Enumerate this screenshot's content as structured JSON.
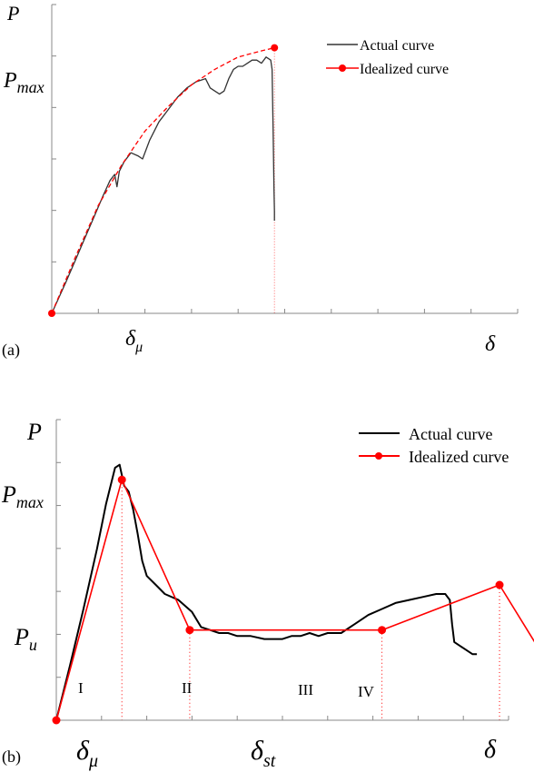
{
  "chart_data": [
    {
      "type": "line",
      "panel_label": "(a)",
      "y_axis_label": "P",
      "x_axis_label": "δ",
      "y_tick_label": {
        "base": "P",
        "sub": "max"
      },
      "x_tick_label": {
        "base": "δ",
        "sub": "μ"
      },
      "xlim": [
        0,
        10
      ],
      "ylim": [
        0,
        1.0
      ],
      "legend": {
        "placement": "top-right",
        "entries": [
          {
            "label": "Actual curve",
            "color": "#333333",
            "marker": "none"
          },
          {
            "label": "Idealized curve",
            "color": "#ff0000",
            "marker": "dot",
            "dashed": true
          }
        ]
      },
      "series": [
        {
          "name": "Actual curve",
          "color": "#333333",
          "x": [
            0.0,
            0.15,
            0.3,
            0.5,
            0.7,
            0.9,
            1.1,
            1.25,
            1.35,
            1.4,
            1.45,
            1.55,
            1.7,
            1.85,
            1.95,
            2.1,
            2.3,
            2.5,
            2.7,
            2.9,
            3.1,
            3.3,
            3.4,
            3.5,
            3.6,
            3.7,
            3.8,
            3.9,
            4.0,
            4.1,
            4.2,
            4.3,
            4.4,
            4.5,
            4.6,
            4.7,
            4.73,
            4.75,
            4.77,
            4.78,
            4.78
          ],
          "y": [
            0.0,
            0.05,
            0.1,
            0.17,
            0.24,
            0.31,
            0.38,
            0.43,
            0.45,
            0.41,
            0.46,
            0.49,
            0.52,
            0.51,
            0.5,
            0.56,
            0.62,
            0.66,
            0.7,
            0.73,
            0.75,
            0.76,
            0.73,
            0.72,
            0.71,
            0.72,
            0.76,
            0.79,
            0.8,
            0.8,
            0.81,
            0.82,
            0.82,
            0.81,
            0.83,
            0.82,
            0.79,
            0.6,
            0.4,
            0.33,
            0.3
          ]
        },
        {
          "name": "Idealized curve",
          "color": "#ff0000",
          "x": [
            0.0,
            0.5,
            1.0,
            1.5,
            2.0,
            2.5,
            3.0,
            3.5,
            4.0,
            4.5,
            4.78
          ],
          "y": [
            0.0,
            0.18,
            0.35,
            0.48,
            0.59,
            0.67,
            0.74,
            0.79,
            0.83,
            0.85,
            0.86
          ]
        }
      ],
      "key_points": [
        {
          "x": 0.0,
          "y": 0.0
        },
        {
          "x": 4.78,
          "y": 0.86
        }
      ]
    },
    {
      "type": "line",
      "panel_label": "(b)",
      "y_axis_label": "P",
      "x_axis_label": "δ",
      "y_tick_labels": [
        {
          "base": "P",
          "sub": "max"
        },
        {
          "base": "P",
          "sub": "u"
        }
      ],
      "x_tick_labels": [
        {
          "base": "δ",
          "sub": "μ"
        },
        {
          "base": "δ",
          "sub": "st"
        }
      ],
      "stage_labels": [
        "I",
        "II",
        "III",
        "IV"
      ],
      "xlim": [
        0,
        10
      ],
      "ylim": [
        0,
        1.0
      ],
      "legend": {
        "placement": "top-right",
        "entries": [
          {
            "label": "Actual curve",
            "color": "#000000",
            "marker": "none"
          },
          {
            "label": "Idealized curve",
            "color": "#ff0000",
            "marker": "dot"
          }
        ]
      },
      "series": [
        {
          "name": "Actual curve",
          "color": "#000000",
          "x": [
            0.0,
            0.3,
            0.6,
            0.9,
            1.1,
            1.3,
            1.4,
            1.5,
            1.6,
            1.7,
            1.8,
            1.9,
            2.0,
            2.2,
            2.4,
            2.7,
            3.0,
            3.2,
            3.4,
            3.6,
            3.8,
            4.0,
            4.3,
            4.6,
            5.0,
            5.2,
            5.4,
            5.6,
            5.8,
            6.0,
            6.3,
            6.6,
            6.9,
            7.2,
            7.5,
            7.8,
            8.1,
            8.4,
            8.6,
            8.7,
            8.75,
            8.8,
            9.0,
            9.2,
            9.3
          ],
          "y": [
            0.0,
            0.18,
            0.37,
            0.57,
            0.72,
            0.84,
            0.85,
            0.78,
            0.76,
            0.7,
            0.62,
            0.53,
            0.48,
            0.45,
            0.42,
            0.4,
            0.36,
            0.31,
            0.3,
            0.29,
            0.29,
            0.28,
            0.28,
            0.27,
            0.27,
            0.28,
            0.28,
            0.29,
            0.28,
            0.29,
            0.29,
            0.32,
            0.35,
            0.37,
            0.39,
            0.4,
            0.41,
            0.42,
            0.42,
            0.4,
            0.32,
            0.26,
            0.24,
            0.22,
            0.22
          ]
        },
        {
          "name": "Idealized curve",
          "color": "#ff0000",
          "x": [
            0.0,
            1.45,
            2.95,
            7.2,
            9.8,
            10.7
          ],
          "y": [
            0.0,
            0.8,
            0.3,
            0.3,
            0.45,
            0.23
          ]
        }
      ]
    }
  ]
}
